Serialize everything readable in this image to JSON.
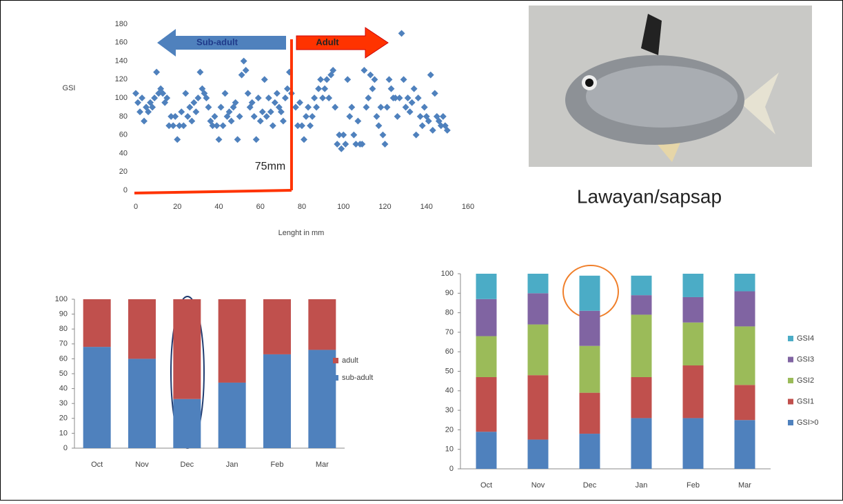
{
  "photo_caption": "Lawayan/sapsap",
  "chart_data": [
    {
      "type": "scatter",
      "ylabel": "GSI",
      "xlabel": "Lenght in mm",
      "color": "#4f81bd",
      "annotations": [
        "Sub-adult",
        "Adult",
        "75mm"
      ],
      "threshold": 75,
      "xlim": [
        0,
        160
      ],
      "xticks": [
        0,
        20,
        40,
        60,
        80,
        100,
        120,
        140,
        160
      ],
      "ylim": [
        0,
        180
      ],
      "yticks": [
        0,
        20,
        40,
        60,
        80,
        100,
        120,
        140,
        160,
        180
      ],
      "x": [
        0,
        1,
        2,
        3,
        4,
        5,
        6,
        7,
        8,
        9,
        10,
        11,
        12,
        13,
        14,
        15,
        16,
        17,
        18,
        19,
        20,
        21,
        22,
        23,
        24,
        25,
        26,
        27,
        28,
        29,
        30,
        31,
        32,
        33,
        34,
        35,
        36,
        37,
        38,
        39,
        40,
        41,
        42,
        43,
        44,
        45,
        46,
        47,
        48,
        49,
        50,
        51,
        52,
        53,
        54,
        55,
        56,
        57,
        58,
        59,
        60,
        61,
        62,
        63,
        64,
        65,
        66,
        67,
        68,
        69,
        70,
        71,
        72,
        73,
        74,
        75,
        77,
        78,
        79,
        80,
        81,
        82,
        83,
        84,
        85,
        86,
        87,
        88,
        89,
        90,
        91,
        92,
        93,
        94,
        95,
        96,
        97,
        98,
        99,
        100,
        101,
        102,
        103,
        104,
        105,
        106,
        107,
        108,
        109,
        110,
        111,
        112,
        113,
        114,
        115,
        116,
        117,
        118,
        119,
        120,
        121,
        122,
        123,
        124,
        125,
        126,
        127,
        128,
        129,
        130,
        131,
        132,
        133,
        134,
        135,
        136,
        137,
        138,
        139,
        140,
        141,
        142,
        143,
        144,
        145,
        146,
        147,
        148,
        149,
        150
      ],
      "values": [
        105,
        95,
        85,
        100,
        75,
        90,
        85,
        95,
        90,
        100,
        128,
        105,
        110,
        105,
        95,
        100,
        70,
        80,
        70,
        80,
        55,
        70,
        85,
        70,
        105,
        80,
        90,
        75,
        95,
        85,
        100,
        128,
        110,
        105,
        100,
        90,
        75,
        70,
        80,
        70,
        55,
        90,
        70,
        105,
        80,
        85,
        75,
        90,
        95,
        55,
        80,
        125,
        140,
        130,
        105,
        90,
        95,
        80,
        55,
        100,
        75,
        85,
        120,
        80,
        100,
        85,
        70,
        95,
        105,
        90,
        85,
        75,
        100,
        110,
        128,
        105,
        90,
        70,
        95,
        70,
        55,
        80,
        90,
        70,
        80,
        100,
        90,
        110,
        120,
        100,
        110,
        120,
        100,
        125,
        130,
        90,
        50,
        60,
        45,
        60,
        50,
        120,
        80,
        90,
        60,
        50,
        75,
        50,
        50,
        130,
        90,
        100,
        125,
        110,
        120,
        80,
        70,
        90,
        60,
        50,
        90,
        120,
        110,
        100,
        100,
        80,
        100,
        170,
        120,
        90,
        100,
        85,
        95,
        110,
        60,
        100,
        80,
        70,
        90,
        80,
        75,
        125,
        65,
        105,
        80,
        75,
        70,
        80,
        70,
        65
      ]
    },
    {
      "type": "stacked-bar",
      "categories": [
        "Oct",
        "Nov",
        "Dec",
        "Jan",
        "Feb",
        "Mar"
      ],
      "ylim": [
        0,
        100
      ],
      "yticks": [
        0,
        10,
        20,
        30,
        40,
        50,
        60,
        70,
        80,
        90,
        100
      ],
      "series": [
        {
          "name": "sub-adult",
          "color": "#4f81bd",
          "values": [
            68,
            60,
            33,
            44,
            63,
            66
          ]
        },
        {
          "name": "adult",
          "color": "#c0504d",
          "values": [
            32,
            40,
            67,
            56,
            37,
            34
          ]
        }
      ]
    },
    {
      "type": "stacked-bar",
      "categories": [
        "Oct",
        "Nov",
        "Dec",
        "Jan",
        "Feb",
        "Mar"
      ],
      "ylim": [
        0,
        100
      ],
      "yticks": [
        0,
        10,
        20,
        30,
        40,
        50,
        60,
        70,
        80,
        90,
        100
      ],
      "series": [
        {
          "name": "GSI>0",
          "color": "#4f81bd",
          "values": [
            19,
            15,
            18,
            26,
            26,
            25
          ]
        },
        {
          "name": "GSI1",
          "color": "#c0504d",
          "values": [
            28,
            33,
            21,
            21,
            27,
            18
          ]
        },
        {
          "name": "GSI2",
          "color": "#9bbb59",
          "values": [
            21,
            26,
            24,
            32,
            22,
            30
          ]
        },
        {
          "name": "GSI3",
          "color": "#8064a2",
          "values": [
            19,
            16,
            18,
            10,
            13,
            18
          ]
        },
        {
          "name": "GSI4",
          "color": "#4bacc6",
          "values": [
            13,
            10,
            18,
            10,
            12,
            9
          ]
        }
      ]
    }
  ]
}
